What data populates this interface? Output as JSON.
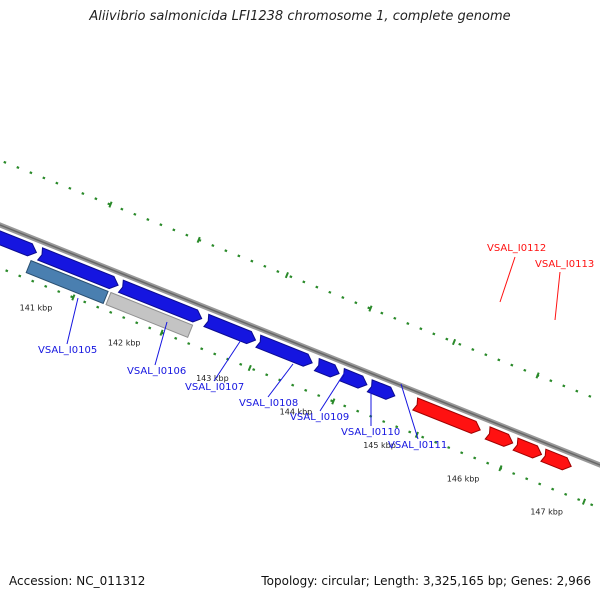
{
  "title": "Aliivibrio salmonicida LFI1238 chromosome 1, complete genome",
  "accession_text": "Accession: NC_011312",
  "summary_text": "Topology: circular; Length: 3,325,165 bp; Genes: 2,966",
  "colors": {
    "forward_gene": "#1515e0",
    "reverse_gene": "#ff1111",
    "highlight_blue": "#4a7fb0",
    "highlight_grey": "#c4c4c4",
    "backbone": "#888888",
    "tick": "#2a8a2a"
  },
  "ticks": [
    {
      "label": "141 kbp"
    },
    {
      "label": "142 kbp"
    },
    {
      "label": "143 kbp"
    },
    {
      "label": "144 kbp"
    },
    {
      "label": "145 kbp"
    },
    {
      "label": "146 kbp"
    },
    {
      "label": "147 kbp"
    }
  ],
  "genes": [
    {
      "name": "",
      "strand": "forward"
    },
    {
      "name": "",
      "strand": "forward"
    },
    {
      "name": "",
      "strand": "forward"
    },
    {
      "name": "",
      "strand": "forward"
    },
    {
      "name": "",
      "strand": "forward"
    },
    {
      "name": "",
      "strand": "forward"
    },
    {
      "name": "",
      "strand": "forward"
    },
    {
      "name": "",
      "strand": "forward"
    },
    {
      "name": "",
      "strand": "reverse"
    },
    {
      "name": "",
      "strand": "reverse"
    },
    {
      "name": "",
      "strand": "reverse"
    },
    {
      "name": "",
      "strand": "reverse"
    },
    {
      "name": "",
      "strand": "highlight"
    },
    {
      "name": "",
      "strand": "highlight"
    }
  ],
  "gene_labels": [
    {
      "name": "VSAL_I0105",
      "strand": "forward"
    },
    {
      "name": "VSAL_I0106",
      "strand": "forward"
    },
    {
      "name": "VSAL_I0107",
      "strand": "forward"
    },
    {
      "name": "VSAL_I0108",
      "strand": "forward"
    },
    {
      "name": "VSAL_I0109",
      "strand": "forward"
    },
    {
      "name": "VSAL_I0110",
      "strand": "forward"
    },
    {
      "name": "VSAL_I0111",
      "strand": "forward"
    },
    {
      "name": "VSAL_I0112",
      "strand": "reverse"
    },
    {
      "name": "VSAL_I0113",
      "strand": "reverse"
    }
  ]
}
